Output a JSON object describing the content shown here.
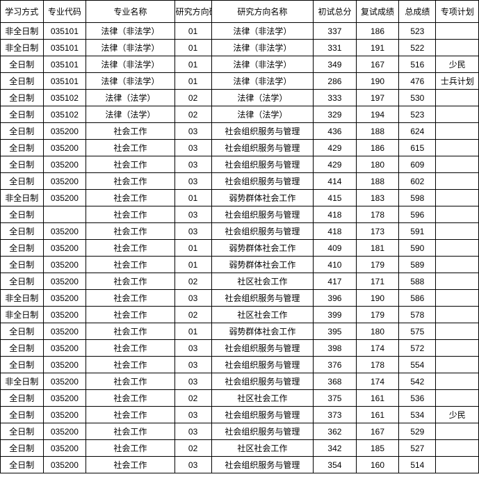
{
  "table": {
    "columns": [
      {
        "key": "study_mode",
        "label": "学习方式",
        "class": "col-study"
      },
      {
        "key": "major_code",
        "label": "专业代码",
        "class": "col-majorcode"
      },
      {
        "key": "major_name",
        "label": "专业名称",
        "class": "col-majorname"
      },
      {
        "key": "dir_code",
        "label": "研究方向码",
        "class": "col-dircode"
      },
      {
        "key": "dir_name",
        "label": "研究方向名称",
        "class": "col-dirname"
      },
      {
        "key": "prelim",
        "label": "初试总分",
        "class": "col-prelim"
      },
      {
        "key": "retest",
        "label": "复试成绩",
        "class": "col-retest"
      },
      {
        "key": "total",
        "label": "总成绩",
        "class": "col-total"
      },
      {
        "key": "plan",
        "label": "专项计划",
        "class": "col-plan"
      }
    ],
    "rows": [
      [
        "非全日制",
        "035101",
        "法律（非法学）",
        "01",
        "法律（非法学）",
        "337",
        "186",
        "523",
        ""
      ],
      [
        "非全日制",
        "035101",
        "法律（非法学）",
        "01",
        "法律（非法学）",
        "331",
        "191",
        "522",
        ""
      ],
      [
        "全日制",
        "035101",
        "法律（非法学）",
        "01",
        "法律（非法学）",
        "349",
        "167",
        "516",
        "少民"
      ],
      [
        "全日制",
        "035101",
        "法律（非法学）",
        "01",
        "法律（非法学）",
        "286",
        "190",
        "476",
        "士兵计划"
      ],
      [
        "全日制",
        "035102",
        "法律（法学）",
        "02",
        "法律（法学）",
        "333",
        "197",
        "530",
        ""
      ],
      [
        "全日制",
        "035102",
        "法律（法学）",
        "02",
        "法律（法学）",
        "329",
        "194",
        "523",
        ""
      ],
      [
        "全日制",
        "035200",
        "社会工作",
        "03",
        "社会组织服务与管理",
        "436",
        "188",
        "624",
        ""
      ],
      [
        "全日制",
        "035200",
        "社会工作",
        "03",
        "社会组织服务与管理",
        "429",
        "186",
        "615",
        ""
      ],
      [
        "全日制",
        "035200",
        "社会工作",
        "03",
        "社会组织服务与管理",
        "429",
        "180",
        "609",
        ""
      ],
      [
        "全日制",
        "035200",
        "社会工作",
        "03",
        "社会组织服务与管理",
        "414",
        "188",
        "602",
        ""
      ],
      [
        "非全日制",
        "035200",
        "社会工作",
        "01",
        "弱势群体社会工作",
        "415",
        "183",
        "598",
        ""
      ],
      [
        "全日制",
        "",
        "社会工作",
        "03",
        "社会组织服务与管理",
        "418",
        "178",
        "596",
        ""
      ],
      [
        "全日制",
        "035200",
        "社会工作",
        "03",
        "社会组织服务与管理",
        "418",
        "173",
        "591",
        ""
      ],
      [
        "全日制",
        "035200",
        "社会工作",
        "01",
        "弱势群体社会工作",
        "409",
        "181",
        "590",
        ""
      ],
      [
        "全日制",
        "035200",
        "社会工作",
        "01",
        "弱势群体社会工作",
        "410",
        "179",
        "589",
        ""
      ],
      [
        "全日制",
        "035200",
        "社会工作",
        "02",
        "社区社会工作",
        "417",
        "171",
        "588",
        ""
      ],
      [
        "非全日制",
        "035200",
        "社会工作",
        "03",
        "社会组织服务与管理",
        "396",
        "190",
        "586",
        ""
      ],
      [
        "非全日制",
        "035200",
        "社会工作",
        "02",
        "社区社会工作",
        "399",
        "179",
        "578",
        ""
      ],
      [
        "全日制",
        "035200",
        "社会工作",
        "01",
        "弱势群体社会工作",
        "395",
        "180",
        "575",
        ""
      ],
      [
        "全日制",
        "035200",
        "社会工作",
        "03",
        "社会组织服务与管理",
        "398",
        "174",
        "572",
        ""
      ],
      [
        "全日制",
        "035200",
        "社会工作",
        "03",
        "社会组织服务与管理",
        "376",
        "178",
        "554",
        ""
      ],
      [
        "非全日制",
        "035200",
        "社会工作",
        "03",
        "社会组织服务与管理",
        "368",
        "174",
        "542",
        ""
      ],
      [
        "全日制",
        "035200",
        "社会工作",
        "02",
        "社区社会工作",
        "375",
        "161",
        "536",
        ""
      ],
      [
        "全日制",
        "035200",
        "社会工作",
        "03",
        "社会组织服务与管理",
        "373",
        "161",
        "534",
        "少民"
      ],
      [
        "全日制",
        "035200",
        "社会工作",
        "03",
        "社会组织服务与管理",
        "362",
        "167",
        "529",
        ""
      ],
      [
        "全日制",
        "035200",
        "社会工作",
        "02",
        "社区社会工作",
        "342",
        "185",
        "527",
        ""
      ],
      [
        "全日制",
        "035200",
        "社会工作",
        "03",
        "社会组织服务与管理",
        "354",
        "160",
        "514",
        ""
      ]
    ],
    "border_color": "#000000",
    "text_color": "#000000",
    "background_color": "#ffffff",
    "font_size": 12,
    "header_font_size": 12,
    "watermark": {
      "blue_bg": "#4a8fd8",
      "red_text_color": "#e94e3c",
      "opacity": 0.4
    }
  }
}
